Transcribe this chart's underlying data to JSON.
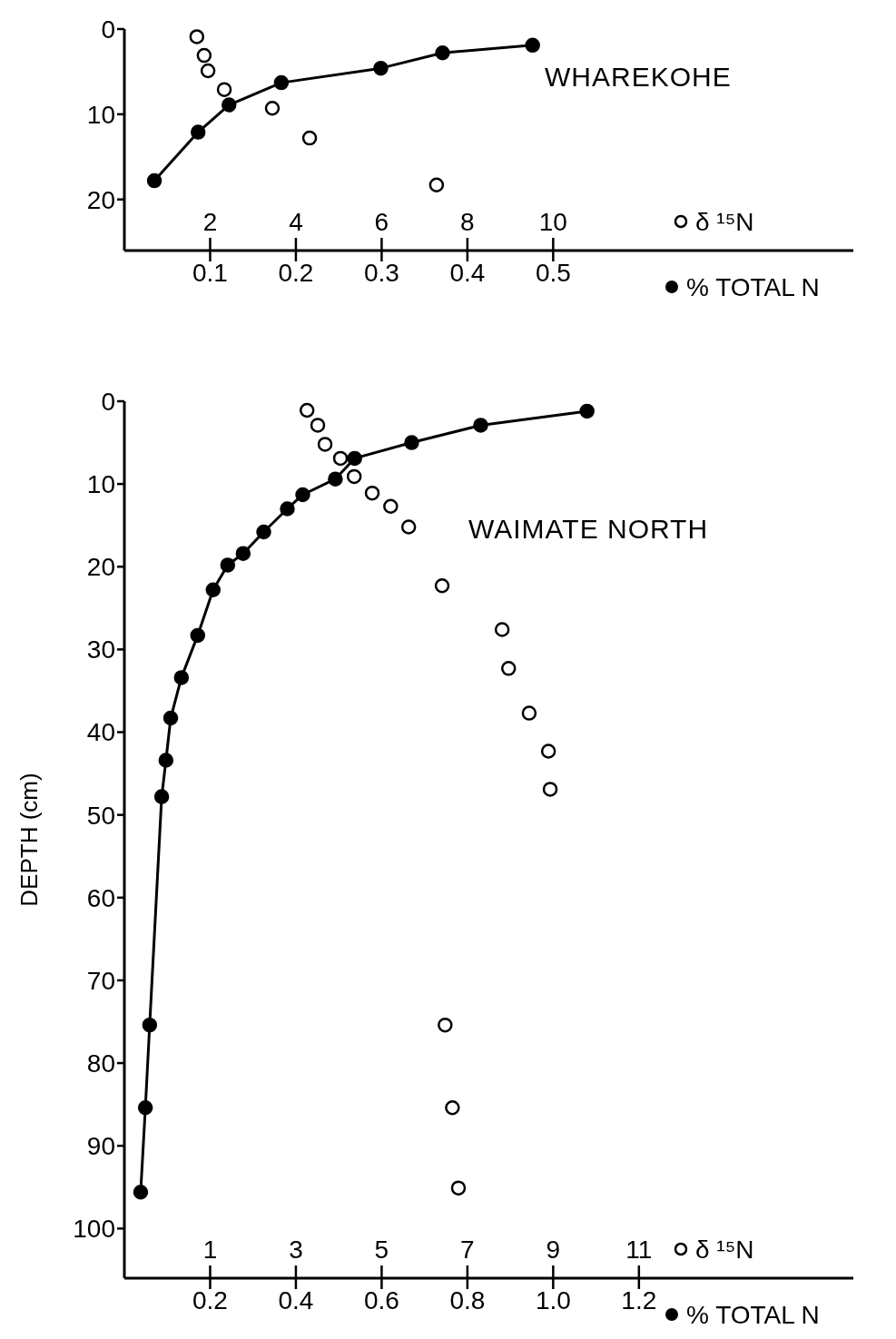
{
  "chart_data": [
    {
      "type": "scatter",
      "annotations": [
        "WHAREKOHE"
      ],
      "marker": "circle",
      "xlabel": "% TOTAL N",
      "x2label": "δ ¹⁵N",
      "xlim": [
        0,
        0.85
      ],
      "xticks": [
        0.1,
        0.2,
        0.3,
        0.4,
        0.5
      ],
      "x2lim": [
        0,
        17
      ],
      "x2ticks": [
        2,
        4,
        6,
        8,
        10
      ],
      "ylim": [
        26,
        0
      ],
      "yticks": [
        0,
        10,
        20
      ],
      "series": [
        {
          "axis": "x2",
          "color": "#000000",
          "x": [
            1.69,
            1.86,
            1.95,
            2.33,
            3.45,
            4.32,
            7.28
          ],
          "values": [
            0.9,
            3.1,
            4.9,
            7.1,
            9.3,
            12.8,
            18.3
          ]
        },
        {
          "type": "line",
          "color": "#000000",
          "x": [
            0.035,
            0.086,
            0.122,
            0.183,
            0.299,
            0.371,
            0.476
          ],
          "values": [
            17.8,
            12.1,
            8.9,
            6.3,
            4.6,
            2.8,
            1.9
          ]
        }
      ]
    },
    {
      "type": "scatter",
      "annotations": [
        "WAIMATE NORTH"
      ],
      "marker": "circle",
      "xlabel": "% TOTAL N",
      "x2label": "δ ¹⁵N",
      "ylabel": "DEPTH (cm)",
      "xlim": [
        0,
        1.7
      ],
      "xticks": [
        0.2,
        0.4,
        0.6,
        0.8,
        {
          "value": 1,
          "label": "1.0"
        },
        1.2
      ],
      "x2lim": [
        -1,
        16
      ],
      "x2ticks": [
        1,
        3,
        5,
        7,
        9,
        11
      ],
      "ylim": [
        106,
        0
      ],
      "yticks": [
        0,
        10,
        20,
        30,
        40,
        50,
        60,
        70,
        80,
        90,
        100
      ],
      "series": [
        {
          "axis": "x2",
          "color": "#000000",
          "x": [
            3.26,
            3.51,
            3.68,
            4.04,
            4.36,
            4.78,
            5.21,
            5.63,
            6.41,
            7.81,
            7.96,
            8.44,
            8.89,
            8.93,
            6.48,
            6.65,
            6.79
          ],
          "values": [
            1.1,
            2.9,
            5.2,
            6.9,
            9.1,
            11.1,
            12.7,
            15.2,
            22.3,
            27.6,
            32.3,
            37.7,
            42.3,
            46.9,
            75.4,
            85.4,
            95.1
          ]
        },
        {
          "type": "line",
          "color": "#000000",
          "x": [
            0.038,
            0.049,
            0.059,
            0.087,
            0.097,
            0.108,
            0.133,
            0.171,
            0.207,
            0.241,
            0.277,
            0.325,
            0.38,
            0.416,
            0.492,
            0.537,
            0.67,
            0.831,
            1.079
          ],
          "values": [
            95.6,
            85.4,
            75.4,
            47.8,
            43.4,
            38.3,
            33.4,
            28.3,
            22.8,
            19.8,
            18.4,
            15.8,
            13.0,
            11.3,
            9.4,
            6.9,
            5.0,
            2.9,
            1.2
          ]
        }
      ]
    }
  ]
}
